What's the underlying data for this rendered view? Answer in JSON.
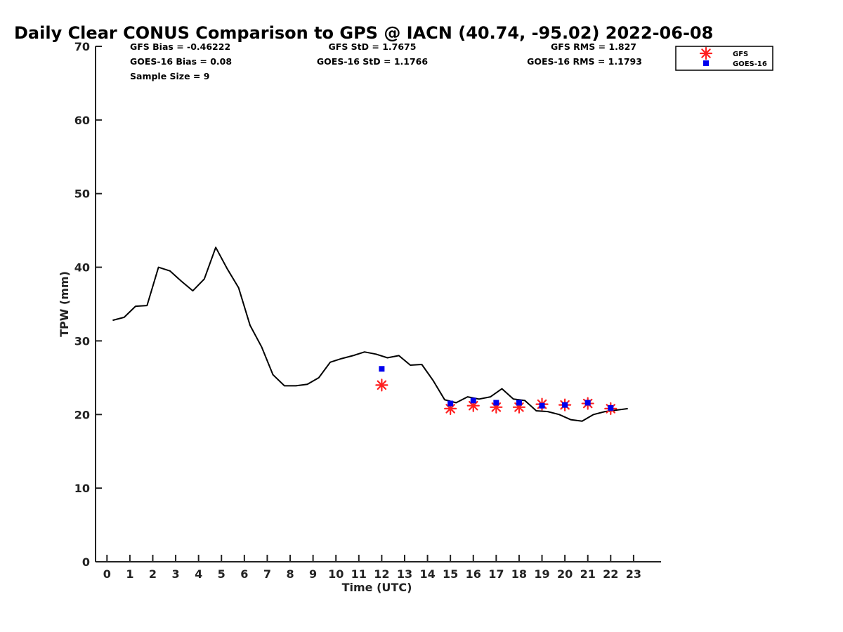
{
  "chart_data": {
    "type": "line",
    "title": "Daily Clear CONUS Comparison to GPS @ IACN (40.74, -95.02) 2022-06-08",
    "xlabel": "Time (UTC)",
    "ylabel": "TPW (mm)",
    "xlim": [
      -0.5,
      24.2
    ],
    "ylim": [
      0,
      70
    ],
    "xticks": [
      0,
      1,
      2,
      3,
      4,
      5,
      6,
      7,
      8,
      9,
      10,
      11,
      12,
      13,
      14,
      15,
      16,
      17,
      18,
      19,
      20,
      21,
      22,
      23
    ],
    "yticks": [
      0,
      10,
      20,
      30,
      40,
      50,
      60,
      70
    ],
    "grid": false,
    "legend_position": "top-right",
    "stats": {
      "gfs_bias": "GFS Bias = -0.46222",
      "gfs_std": "GFS StD = 1.7675",
      "gfs_rms": "GFS RMS = 1.827",
      "goes_bias": "GOES-16 Bias = 0.08",
      "goes_std": "GOES-16 StD = 1.1766",
      "goes_rms": "GOES-16 RMS = 1.1793",
      "sample_size": "Sample Size = 9"
    },
    "series": [
      {
        "style": "line",
        "color": "#000000",
        "x": [
          0.25,
          0.75,
          1.25,
          1.75,
          2.25,
          2.75,
          3.25,
          3.75,
          4.25,
          4.75,
          5.25,
          5.75,
          6.25,
          6.75,
          7.25,
          7.75,
          8.25,
          8.75,
          9.25,
          9.75,
          10.25,
          10.75,
          11.25,
          11.75,
          12.25,
          12.75,
          13.25,
          13.75,
          14.25,
          14.75,
          15.25,
          15.75,
          16.25,
          16.75,
          17.25,
          17.75,
          18.25,
          18.75,
          19.25,
          19.75,
          20.25,
          20.75,
          21.25,
          21.75,
          22.25,
          22.75
        ],
        "y": [
          32.8,
          33.2,
          34.7,
          34.8,
          40.0,
          39.5,
          38.1,
          36.8,
          38.4,
          42.7,
          39.8,
          37.2,
          32.1,
          29.2,
          25.4,
          23.9,
          23.9,
          24.1,
          25.0,
          27.1,
          27.6,
          28.0,
          28.5,
          28.2,
          27.7,
          28.0,
          26.7,
          26.8,
          24.6,
          22.0,
          21.6,
          22.4,
          22.1,
          22.4,
          23.5,
          22.1,
          21.9,
          20.5,
          20.4,
          20.0,
          19.3,
          19.1,
          20.0,
          20.4,
          20.6,
          20.8
        ]
      },
      {
        "name": "GFS",
        "style": "asterisk",
        "color": "#ff2020",
        "x": [
          12,
          15,
          16,
          17,
          18,
          19,
          20,
          21,
          22
        ],
        "y": [
          24.0,
          20.8,
          21.2,
          21.0,
          21.0,
          21.4,
          21.3,
          21.5,
          20.8
        ]
      },
      {
        "name": "GOES-16",
        "style": "square",
        "color": "#0000ee",
        "x": [
          12,
          15,
          16,
          17,
          18,
          19,
          20,
          21,
          22
        ],
        "y": [
          26.2,
          21.5,
          21.9,
          21.6,
          21.6,
          21.2,
          21.3,
          21.6,
          20.9
        ]
      }
    ]
  }
}
